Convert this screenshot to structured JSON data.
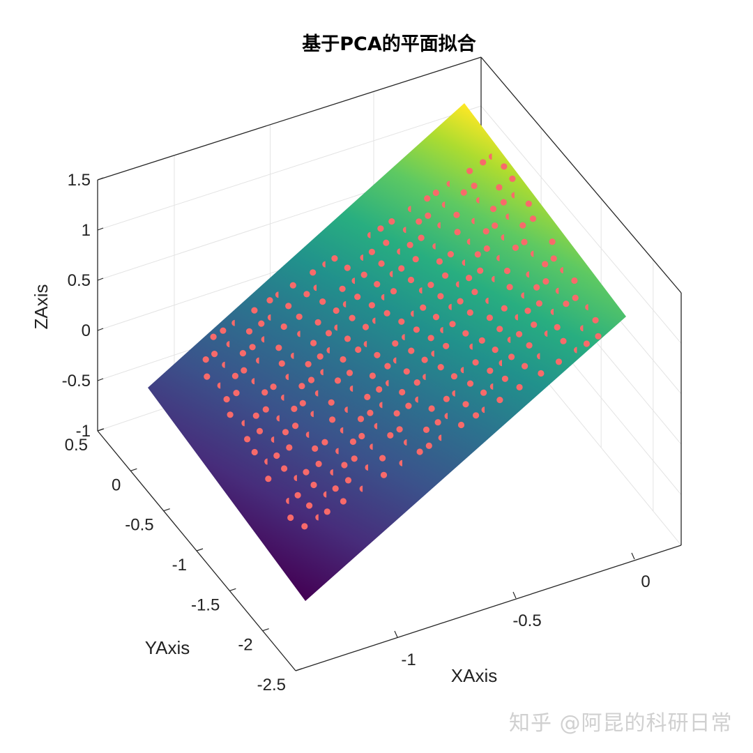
{
  "chart_data": {
    "type": "scatter",
    "title": "基于PCA的平面拟合",
    "xlabel": "XAxis",
    "ylabel": "YAxis",
    "zlabel": "ZAxis",
    "xlim": [
      -1.5,
      0.3
    ],
    "ylim": [
      -2.5,
      0.5
    ],
    "zlim": [
      -1,
      1.5
    ],
    "x_ticks": [
      "-1",
      "-0.5",
      "0"
    ],
    "y_ticks": [
      "0.5",
      "0",
      "-0.5",
      "-1",
      "-1.5",
      "-2",
      "-2.5"
    ],
    "z_ticks": [
      "1.5",
      "1",
      "0.5",
      "0",
      "-0.5",
      "-1"
    ],
    "grid": true,
    "surface": {
      "type": "fitted-plane",
      "colormap": "viridis"
    },
    "points_color": "#f86a6a",
    "points_description": "grid of sample points lying near the fitted plane, x roughly -1.3 to 0.1, y roughly -2.2 to 0.3"
  },
  "watermark": "知乎 @阿昆的科研日常"
}
